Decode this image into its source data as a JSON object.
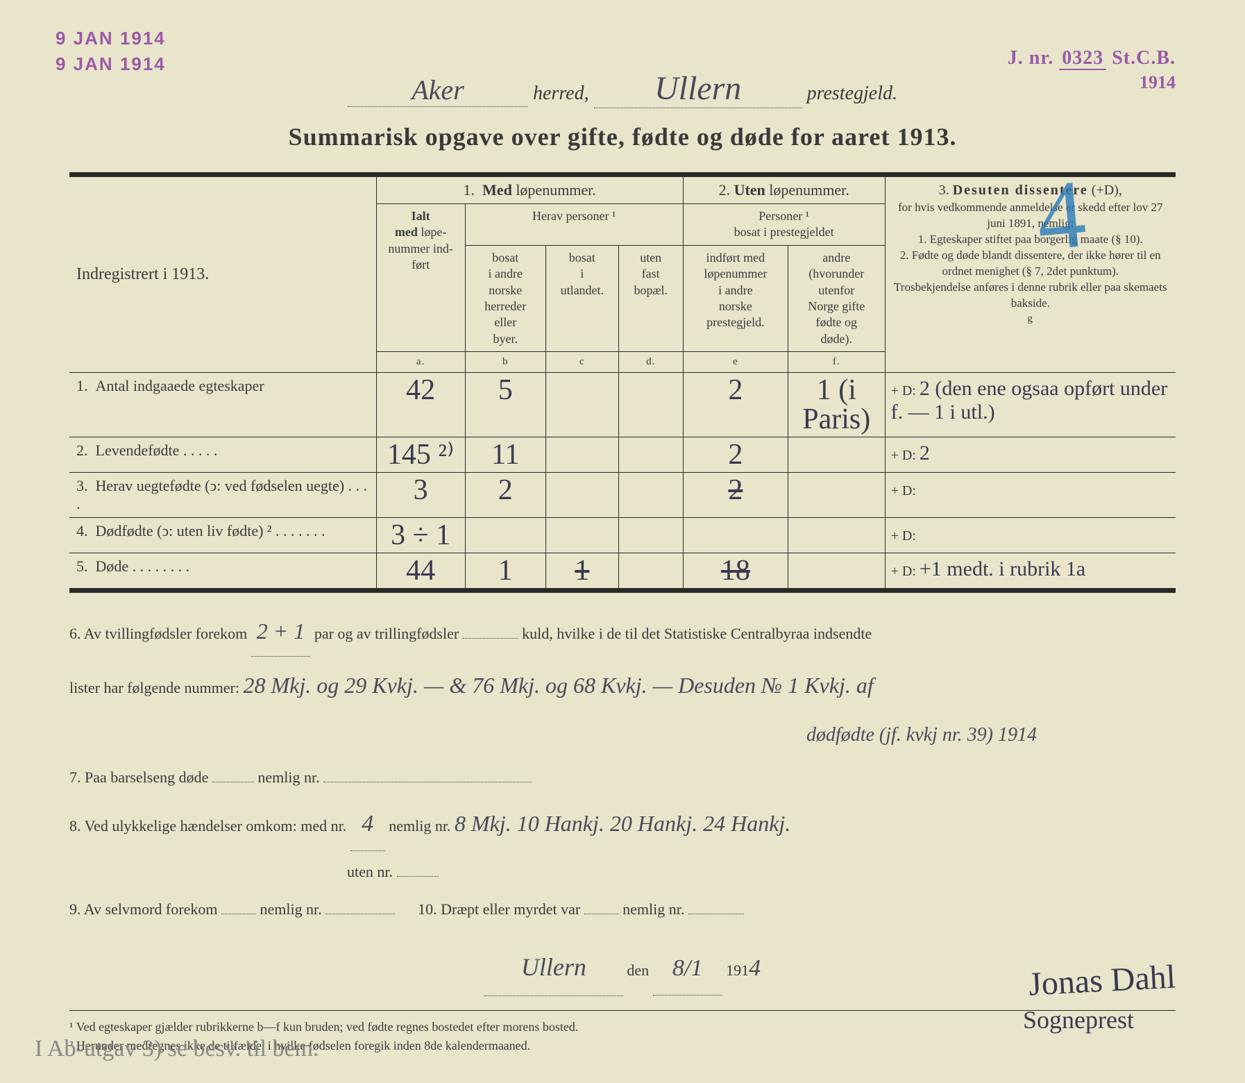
{
  "stamps": {
    "date1": "9 JAN 1914",
    "date2": "9 JAN 1914",
    "jnr_label": "J. nr.",
    "jnr_number": "0323",
    "jnr_suffix": "St.C.B.",
    "jnr_year": "1914"
  },
  "header": {
    "herred_value": "Aker",
    "herred_label": "herred,",
    "prestegjeld_value": "Ullern",
    "prestegjeld_label": "prestegjeld."
  },
  "title": "Summarisk opgave over gifte, fødte og døde for aaret 1913.",
  "blue_mark": "4",
  "table": {
    "index_label": "Indregistrert i 1913.",
    "s1_title": "1.  Med løpenummer.",
    "s2_title": "2. Uten løpenummer.",
    "s3_title": "3. Desuten dissentere (+D),",
    "ialt_head": "Ialt\nmed løpe-\nnummer ind-\nført",
    "herav_head": "Herav personer ¹",
    "col_b": "bosat\ni andre\nnorske\nherreder\neller\nbyer.",
    "col_c": "bosat\ni\nutlandet.",
    "col_d": "uten\nfast\nbopæl.",
    "s2_sub": "Personer ¹\nbosat i prestegjeldet",
    "col_e": "indført med\nløpenummer\ni andre\nnorske\nprestegjeld.",
    "col_f": "andre\n(hvorunder\nutenfor\nNorge gifte\nfødte og\ndøde).",
    "desuten_body": "for hvis vedkommende anmeldelse er skedd efter lov 27 juni 1891, nemlig:\n1. Egteskaper stiftet paa borgerlig maate (§ 10).\n2. Fødte og døde blandt dissentere, der ikke hører til en ordnet menighet (§ 7, 2det punktum).\nTrosbekjendelse anføres i denne rubrik eller paa skemaets bakside.",
    "letters": {
      "a": "a.",
      "b": "b",
      "c": "c",
      "d": "d.",
      "e": "e",
      "f": "f.",
      "g": "g"
    },
    "rows": [
      {
        "num": "1.",
        "label": "Antal indgaaede egteskaper",
        "a": "42",
        "b": "5",
        "c": "",
        "d": "",
        "e": "2",
        "f": "1 (i Paris)",
        "g": "2 (den ene ogsaa opført under f. — 1 i utl.)"
      },
      {
        "num": "2.",
        "label": "Levendefødte  .  .  .  .  .",
        "a": "145 ²⁾",
        "b": "11",
        "c": "",
        "d": "",
        "e": "2",
        "f": "",
        "g": "2"
      },
      {
        "num": "3.",
        "label": "Herav uegtefødte (ↄ: ved fødselen uegte)  .  .  .  .",
        "a": "3",
        "b": "2",
        "c": "",
        "d": "",
        "e": "2",
        "e_struck": true,
        "f": "",
        "g": ""
      },
      {
        "num": "4.",
        "label": "Dødfødte (ↄ: uten liv fødte) ²  .  .  .  .  .  .  .",
        "a": "3 ÷ 1",
        "b": "",
        "c": "",
        "d": "",
        "e": "",
        "f": "",
        "g": ""
      },
      {
        "num": "5.",
        "label": "Døde  .  .  .  .  .  .  .  .",
        "a": "44",
        "b": "1",
        "c": "1",
        "c_struck": true,
        "d": "",
        "e": "18",
        "e_struck": true,
        "f": "",
        "g": "+1 medt. i rubrik 1a"
      }
    ],
    "plusD_label": "+ D:"
  },
  "bottom": {
    "line6a": "6.   Av tvillingfødsler forekom",
    "line6_val1": "2 + 1",
    "line6b": "par og av trillingfødsler",
    "line6c": "kuld, hvilke i de til det Statistiske Centralbyraa indsendte",
    "line6d": "lister har følgende nummer:",
    "line6_list": "28 Mkj. og 29 Kvkj. — & 76 Mkj. og 68 Kvkj. — Desuden № 1 Kvkj. af",
    "line6_list2": "dødfødte (jf. kvkj nr. 39) 1914",
    "line7": "7.   Paa barselseng døde",
    "line7b": "nemlig nr.",
    "line8": "8.   Ved ulykkelige hændelser omkom: med nr.",
    "line8_val": "4",
    "line8b": "nemlig nr.",
    "line8_list": "8 Mkj. 10 Hankj. 20 Hankj. 24 Hankj.",
    "line8c": "uten nr.",
    "line9": "9.   Av selvmord forekom",
    "line9b": "nemlig nr.",
    "line10": "10.   Dræpt eller myrdet var",
    "line10b": "nemlig nr.",
    "place": "Ullern",
    "den": "den",
    "date": "8/1",
    "year_prefix": "191",
    "year_suffix": "4"
  },
  "signature": {
    "name": "Jonas Dahl",
    "role": "Sogneprest"
  },
  "footnotes": {
    "f1": "¹ Ved egteskaper gjælder rubrikkerne b—f kun bruden; ved fødte regnes bostedet efter morens bosted.",
    "f2": "² Herunder medregnes ikke de tilfælde, i hvilke fødselen foregik inden 8de kalendermaaned."
  },
  "pencil_note": "I Ab-utgav   3) se besv. til bem.",
  "colors": {
    "paper": "#e8e5cb",
    "ink": "#3a3a3a",
    "stamp": "#9a5aa8",
    "handwriting": "#3a3a50",
    "blue_mark": "#2a7ab8",
    "pencil": "#888888"
  }
}
